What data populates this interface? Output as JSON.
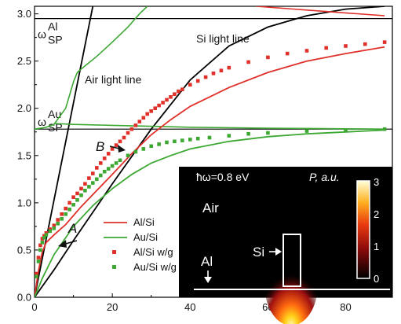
{
  "chart_data": {
    "type": "line",
    "xlim": [
      0,
      92
    ],
    "ylim": [
      0,
      3.08
    ],
    "x_ticks": [
      0,
      20,
      40,
      60,
      80
    ],
    "y_ticks": [
      0.0,
      0.5,
      1.0,
      1.5,
      2.0,
      2.5,
      3.0
    ],
    "x_tick_labels": [
      "0",
      "20",
      "40",
      "60",
      "80"
    ],
    "y_tick_labels": [
      "0.0",
      "0.5",
      "1.0",
      "1.5",
      "2.0",
      "2.5",
      "3.0"
    ],
    "grid": false,
    "reference_lines": [
      {
        "y": 2.95,
        "label_main": "ω",
        "label_sup": "Al",
        "label_sub": "SP"
      },
      {
        "y": 1.78,
        "label_main": "ω",
        "label_sup": "Au",
        "label_sub": "SP"
      }
    ],
    "light_lines": [
      {
        "label": "Air light line",
        "points": [
          [
            0,
            0
          ],
          [
            15,
            3.08
          ]
        ]
      },
      {
        "label": "Si light line",
        "points": [
          [
            0,
            0
          ],
          [
            5,
            0.29
          ],
          [
            10,
            0.6
          ],
          [
            20,
            1.2
          ],
          [
            30,
            1.78
          ],
          [
            40,
            2.3
          ],
          [
            50,
            2.66
          ],
          [
            60,
            2.86
          ],
          [
            70,
            2.98
          ],
          [
            80,
            3.05
          ],
          [
            90,
            3.08
          ]
        ]
      }
    ],
    "series": [
      {
        "name": "Al/Si",
        "style": "line",
        "color": "#e0302a",
        "x": [
          0,
          1,
          2,
          3,
          5,
          8,
          12,
          16,
          20,
          25,
          30,
          35,
          40,
          50,
          60,
          70,
          80,
          90
        ],
        "y": [
          0,
          0.28,
          0.48,
          0.58,
          0.66,
          0.77,
          0.96,
          1.13,
          1.3,
          1.52,
          1.72,
          1.88,
          2.02,
          2.22,
          2.38,
          2.5,
          2.58,
          2.65
        ]
      },
      {
        "name": "Au/Si",
        "style": "line",
        "color": "#3ca832",
        "x": [
          0,
          2,
          5,
          10,
          15,
          20,
          25,
          30,
          35,
          40,
          50,
          60,
          70,
          80,
          90
        ],
        "y": [
          0,
          0.2,
          0.45,
          0.75,
          0.97,
          1.15,
          1.3,
          1.42,
          1.5,
          1.57,
          1.65,
          1.7,
          1.73,
          1.75,
          1.77
        ]
      },
      {
        "name": "Al/Si w/g",
        "style": "markers",
        "color": "#e0302a",
        "x": [
          0.5,
          1,
          1.5,
          2,
          2.5,
          3,
          4,
          5,
          6,
          7,
          8,
          9,
          10,
          11,
          12,
          13,
          14,
          15,
          16,
          17,
          18,
          19,
          20,
          21,
          22,
          23,
          24,
          25,
          26,
          27,
          28,
          29,
          30,
          31,
          32,
          33,
          34,
          35,
          36,
          37,
          38,
          40,
          42,
          44,
          46,
          48,
          50,
          55,
          60,
          65,
          70,
          75,
          80,
          85,
          90
        ],
        "y": [
          0.25,
          0.42,
          0.55,
          0.62,
          0.65,
          0.68,
          0.72,
          0.76,
          0.82,
          0.88,
          0.94,
          1.0,
          1.06,
          1.1,
          1.15,
          1.2,
          1.26,
          1.31,
          1.37,
          1.42,
          1.47,
          1.52,
          1.57,
          1.61,
          1.65,
          1.69,
          1.74,
          1.78,
          1.82,
          1.86,
          1.9,
          1.94,
          1.97,
          2.0,
          2.03,
          2.06,
          2.09,
          2.12,
          2.15,
          2.18,
          2.2,
          2.25,
          2.29,
          2.33,
          2.37,
          2.4,
          2.43,
          2.49,
          2.54,
          2.58,
          2.61,
          2.64,
          2.66,
          2.68,
          2.7
        ]
      },
      {
        "name": "Au/Si w/g",
        "style": "markers",
        "color": "#3ca832",
        "x": [
          0.5,
          1,
          1.5,
          2,
          2.5,
          3,
          4,
          5,
          6,
          7,
          8,
          9,
          10,
          11,
          12,
          13,
          14,
          15,
          16,
          17,
          18,
          19,
          20,
          21,
          22,
          24,
          26,
          28,
          30,
          32,
          34,
          36,
          38,
          40,
          42,
          45,
          50,
          55,
          60,
          70,
          80,
          90
        ],
        "y": [
          0.22,
          0.38,
          0.5,
          0.58,
          0.63,
          0.66,
          0.7,
          0.73,
          0.78,
          0.83,
          0.88,
          0.93,
          0.98,
          1.03,
          1.08,
          1.13,
          1.17,
          1.21,
          1.25,
          1.29,
          1.33,
          1.36,
          1.39,
          1.42,
          1.45,
          1.5,
          1.54,
          1.57,
          1.6,
          1.62,
          1.64,
          1.65,
          1.66,
          1.67,
          1.68,
          1.69,
          1.71,
          1.73,
          1.74,
          1.76,
          1.77,
          1.78
        ]
      }
    ],
    "upper_branches": [
      {
        "color": "#3ca832",
        "x": [
          0,
          3,
          5,
          8,
          10,
          11,
          13,
          16,
          20,
          24,
          27,
          29
        ],
        "y": [
          1.78,
          1.8,
          1.83,
          2.0,
          2.28,
          2.38,
          2.45,
          2.55,
          2.7,
          2.86,
          3.0,
          3.08
        ]
      },
      {
        "color": "#3ca832",
        "x": [
          5,
          10,
          20,
          30,
          40,
          60,
          90
        ],
        "y": [
          1.84,
          1.83,
          1.82,
          1.81,
          1.8,
          1.79,
          1.78
        ]
      },
      {
        "color": "#e0302a",
        "x": [
          57,
          70,
          80,
          90
        ],
        "y": [
          3.08,
          3.04,
          3.01,
          2.98
        ]
      }
    ],
    "annotations": {
      "air_light_line": "Air light line",
      "si_light_line": "Si light line",
      "point_a": "A",
      "point_b": "B"
    },
    "legend": {
      "placement": "bottom-center",
      "entries": [
        "Al/Si",
        "Au/Si",
        "Al/Si w/g",
        "Au/Si w/g"
      ]
    },
    "inset": {
      "placement": "bottom-right",
      "energy_label": "ħω=0.8 eV",
      "colorbar_title": "P, a.u.",
      "colorbar_ticks": [
        "3",
        "2",
        "1",
        "0"
      ],
      "region_air": "Air",
      "region_si": "Si",
      "region_al": "Al"
    }
  }
}
